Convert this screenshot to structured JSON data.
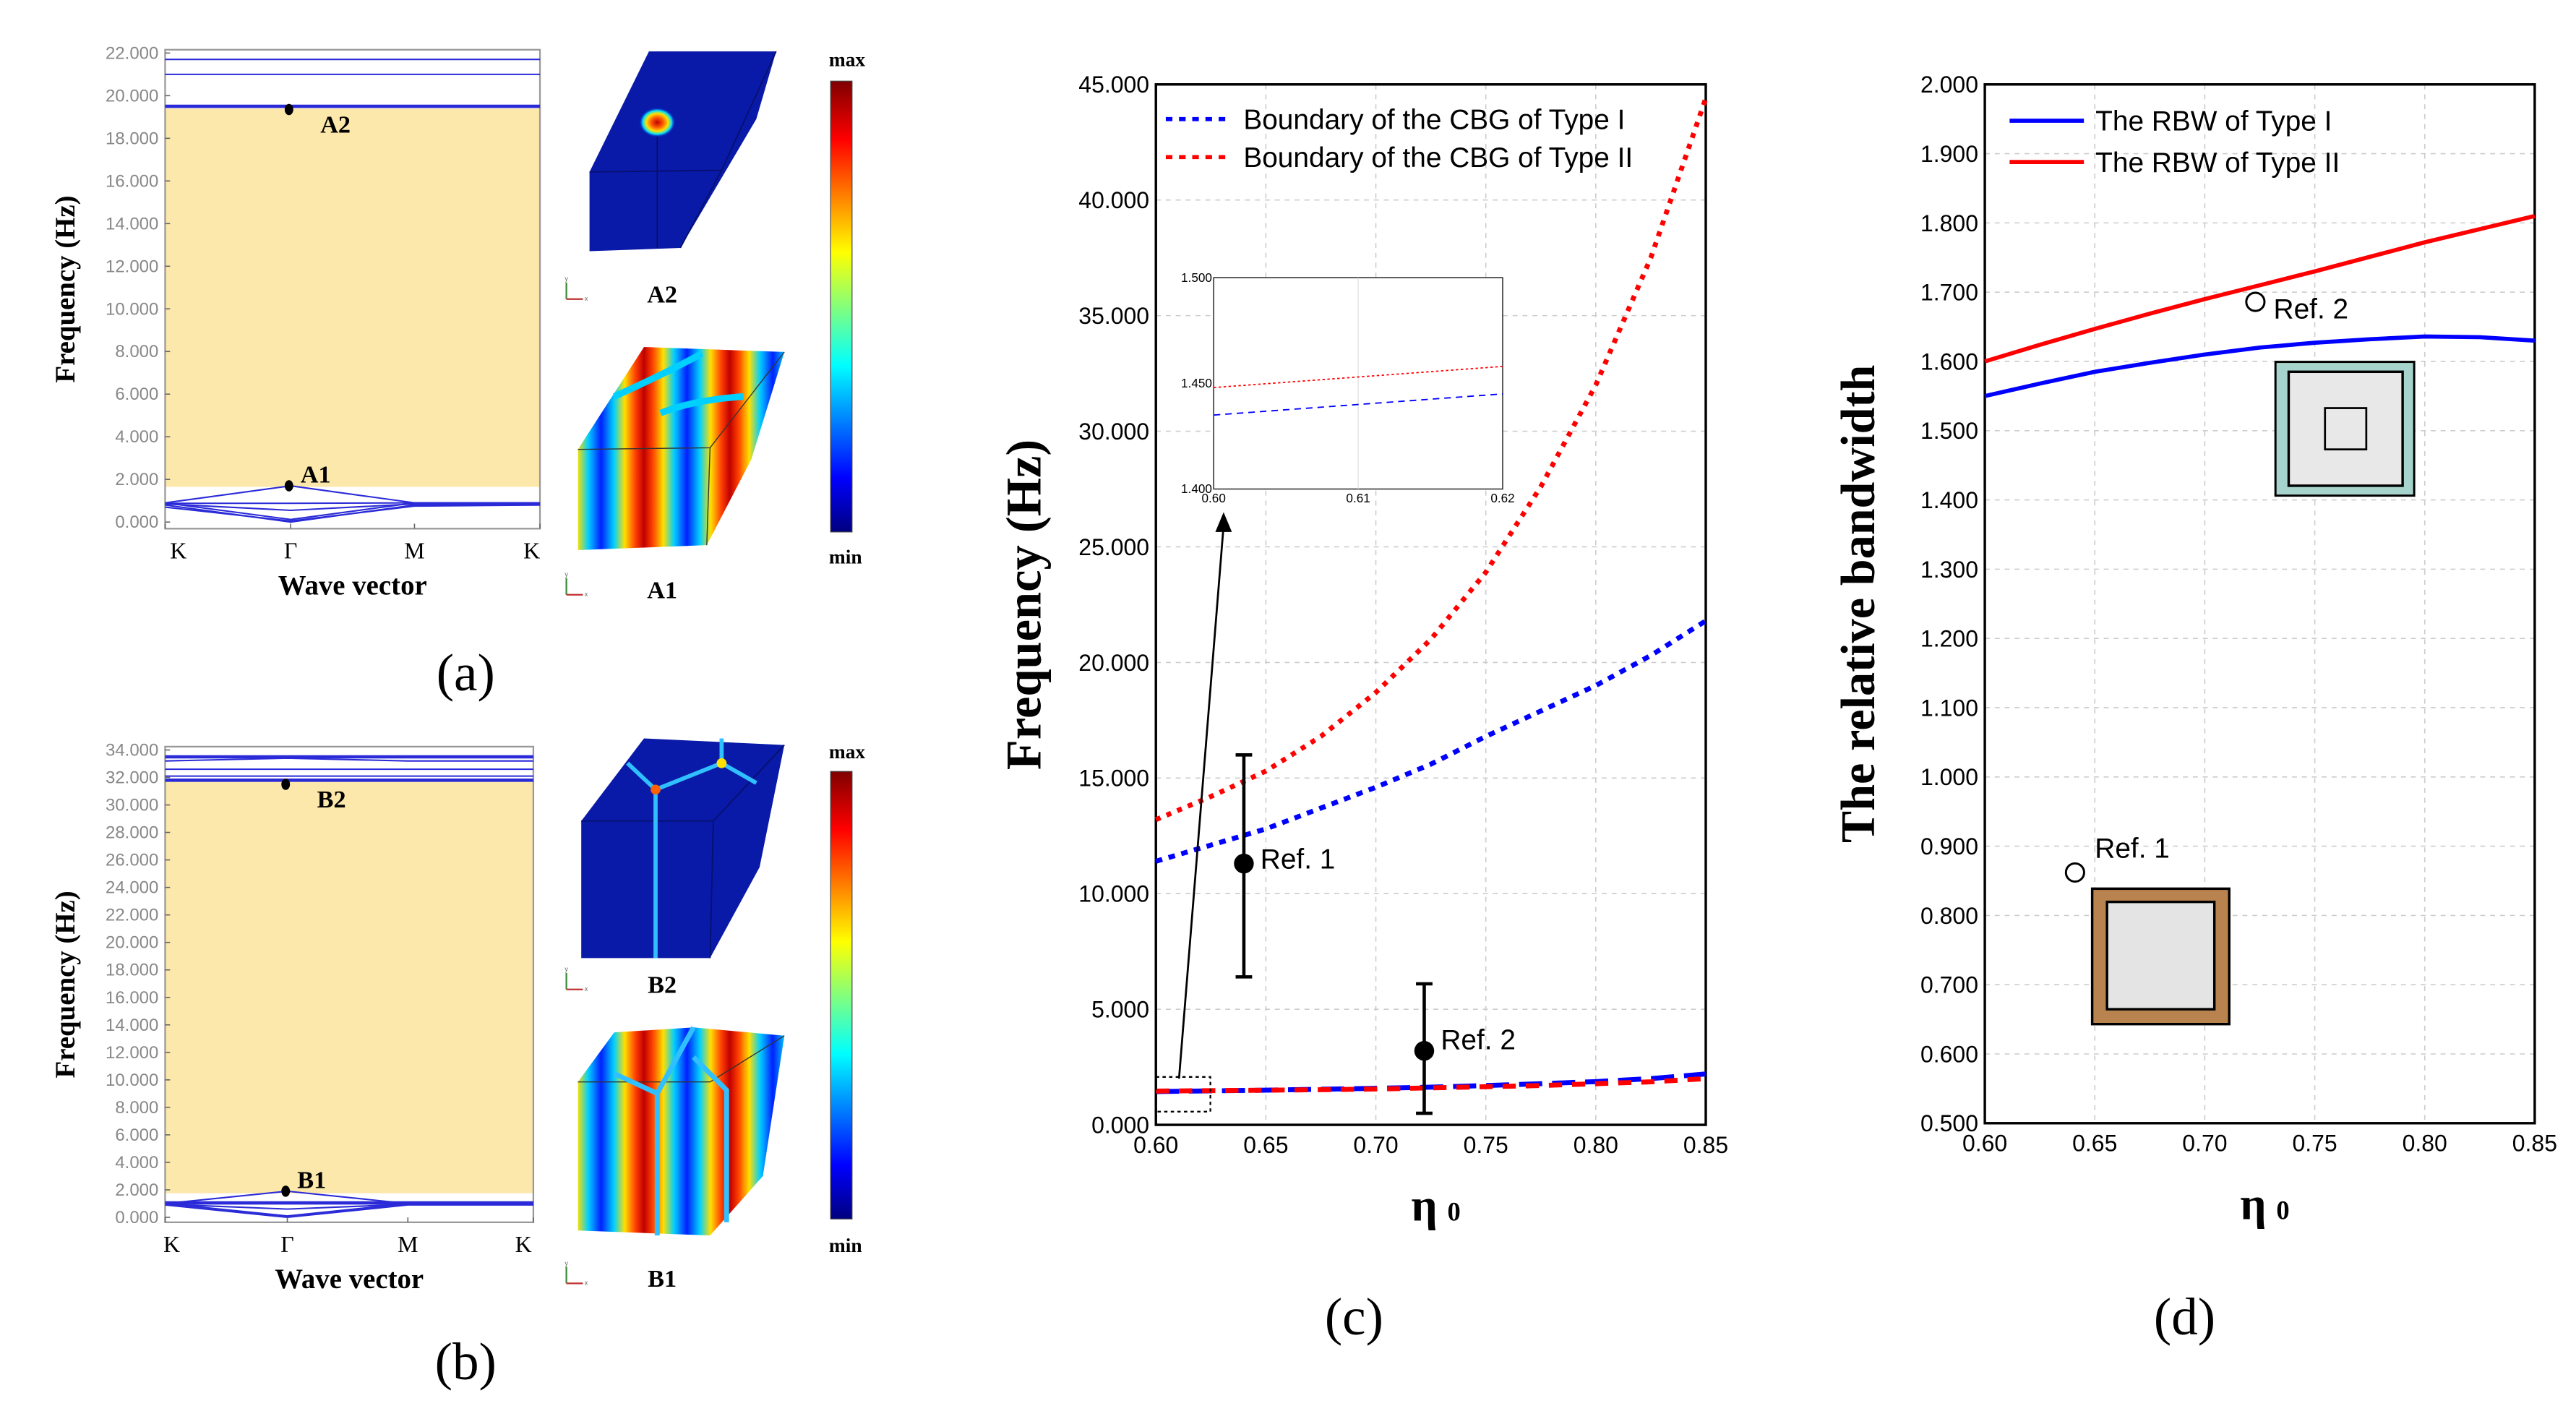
{
  "chart_data": [
    {
      "type": "line",
      "panel_label": "(a)",
      "xlabel": "Wave vector",
      "ylabel": "Frequency (Hz)",
      "x": [
        0,
        1,
        2,
        3
      ],
      "xtick_labels": [
        "K",
        "Γ",
        "M",
        "K"
      ],
      "ylim": [
        0,
        22
      ],
      "yticks": [
        0,
        2,
        4,
        6,
        8,
        10,
        12,
        14,
        16,
        18,
        20,
        22
      ],
      "ytick_labels": [
        "0.000",
        "2.000",
        "4.000",
        "6.000",
        "8.000",
        "10.000",
        "12.000",
        "14.000",
        "16.000",
        "18.000",
        "20.000",
        "22.000"
      ],
      "bandgap": [
        1.65,
        19.4
      ],
      "bands": [
        [
          21.7,
          21.7,
          21.7,
          21.7
        ],
        [
          21.0,
          21.0,
          21.0,
          21.0
        ],
        [
          19.5,
          19.5,
          19.5,
          19.5
        ],
        [
          0.9,
          1.7,
          0.9,
          0.9
        ],
        [
          0.85,
          0.55,
          0.85,
          0.85
        ],
        [
          0.9,
          0.12,
          0.9,
          0.85
        ],
        [
          0.8,
          0.0,
          0.8,
          0.8
        ],
        [
          0.7,
          0.05,
          0.75,
          0.8
        ],
        [
          0.88,
          0.88,
          0.9,
          0.9
        ]
      ],
      "points": [
        {
          "label": "A2",
          "x": 1,
          "y": 19.35
        },
        {
          "label": "A1",
          "x": 1,
          "y": 1.7
        }
      ],
      "mode_labels": [
        "A2",
        "A1"
      ],
      "colorbar": {
        "max": "max",
        "min": "min"
      },
      "triad": {
        "x": "x",
        "y": "y"
      }
    },
    {
      "type": "line",
      "panel_label": "(b)",
      "xlabel": "Wave vector",
      "ylabel": "Frequency (Hz)",
      "x": [
        0,
        1,
        2,
        3
      ],
      "xtick_labels": [
        "K",
        "Γ",
        "M",
        "K"
      ],
      "ylim": [
        0,
        34
      ],
      "yticks": [
        0,
        2,
        4,
        6,
        8,
        10,
        12,
        14,
        16,
        18,
        20,
        22,
        24,
        26,
        28,
        30,
        32,
        34
      ],
      "ytick_labels": [
        "0.000",
        "2.000",
        "4.000",
        "6.000",
        "8.000",
        "10.000",
        "12.000",
        "14.000",
        "16.000",
        "18.000",
        "20.000",
        "22.000",
        "24.000",
        "26.000",
        "28.000",
        "30.000",
        "32.000",
        "34.000"
      ],
      "bandgap": [
        1.75,
        31.7
      ],
      "bands": [
        [
          33.5,
          33.5,
          33.5,
          33.5
        ],
        [
          33.2,
          33.4,
          33.2,
          33.2
        ],
        [
          32.6,
          32.6,
          32.6,
          32.6
        ],
        [
          32.1,
          32.1,
          32.1,
          32.1
        ],
        [
          31.8,
          31.8,
          31.8,
          31.8
        ],
        [
          1.0,
          1.9,
          1.0,
          1.0
        ],
        [
          0.95,
          0.6,
          0.95,
          0.95
        ],
        [
          1.0,
          0.1,
          1.0,
          1.0
        ],
        [
          0.9,
          0.0,
          0.9,
          0.9
        ],
        [
          1.05,
          1.05,
          1.05,
          1.05
        ]
      ],
      "points": [
        {
          "label": "B2",
          "x": 1,
          "y": 31.5
        },
        {
          "label": "B1",
          "x": 1,
          "y": 1.9
        }
      ],
      "mode_labels": [
        "B2",
        "B1"
      ],
      "colorbar": {
        "max": "max",
        "min": "min"
      },
      "triad": {
        "x": "x",
        "y": "y"
      }
    },
    {
      "type": "line",
      "panel_label": "(c)",
      "xlabel": "η",
      "xlabel_sub": "0",
      "ylabel": "Frequency (Hz)",
      "xlim": [
        0.6,
        0.85
      ],
      "ylim": [
        0,
        45
      ],
      "grid": true,
      "legend_position": "top-left",
      "xticks": [
        0.6,
        0.65,
        0.7,
        0.75,
        0.8,
        0.85
      ],
      "xtick_labels": [
        "0.60",
        "0.65",
        "0.70",
        "0.75",
        "0.80",
        "0.85"
      ],
      "yticks": [
        0,
        5,
        10,
        15,
        20,
        25,
        30,
        35,
        40,
        45
      ],
      "ytick_labels": [
        "0.000",
        "5.000",
        "10.000",
        "15.000",
        "20.000",
        "25.000",
        "30.000",
        "35.000",
        "40.000",
        "45.000"
      ],
      "x": [
        0.6,
        0.625,
        0.65,
        0.675,
        0.7,
        0.725,
        0.75,
        0.775,
        0.8,
        0.825,
        0.85
      ],
      "series": [
        {
          "name": "Boundary of the CBG of Type I",
          "color": "#0000ff",
          "upper": [
            11.4,
            12.1,
            12.8,
            13.7,
            14.6,
            15.6,
            16.8,
            17.9,
            19.0,
            20.3,
            21.8
          ],
          "lower": [
            1.44,
            1.47,
            1.5,
            1.54,
            1.58,
            1.63,
            1.7,
            1.78,
            1.87,
            2.0,
            2.2
          ]
        },
        {
          "name": "Boundary of the CBG of Type II",
          "color": "#ff0000",
          "upper": [
            13.2,
            14.2,
            15.3,
            16.8,
            18.7,
            21.0,
            23.9,
            27.6,
            32.0,
            37.5,
            44.4
          ],
          "lower": [
            1.46,
            1.48,
            1.5,
            1.52,
            1.55,
            1.6,
            1.65,
            1.7,
            1.78,
            1.86,
            2.0
          ]
        }
      ],
      "references": [
        {
          "label": "Ref. 1",
          "x": 0.64,
          "y": 11.3,
          "err_low": 6.4,
          "err_high": 16.0
        },
        {
          "label": "Ref. 2",
          "x": 0.722,
          "y": 3.2,
          "err_low": 0.5,
          "err_high": 6.1
        }
      ],
      "inset": {
        "xlim": [
          0.6,
          0.62
        ],
        "ylim": [
          1.4,
          1.5
        ],
        "xticks": [
          0.6,
          0.61,
          0.62
        ],
        "xtick_labels": [
          "0.60",
          "0.61",
          "0.62"
        ],
        "yticks": [
          1.4,
          1.45,
          1.5
        ],
        "ytick_labels": [
          "1.400",
          "1.450",
          "1.500"
        ],
        "x": [
          0.6,
          0.62
        ],
        "type1": [
          1.435,
          1.445
        ],
        "type2": [
          1.448,
          1.458
        ]
      }
    },
    {
      "type": "line",
      "panel_label": "(d)",
      "xlabel": "η",
      "xlabel_sub": "0",
      "ylabel": "The relative bandwidth",
      "xlim": [
        0.6,
        0.85
      ],
      "ylim": [
        0.5,
        2.0
      ],
      "grid": true,
      "legend_position": "top-left",
      "xticks": [
        0.6,
        0.65,
        0.7,
        0.75,
        0.8,
        0.85
      ],
      "xtick_labels": [
        "0.60",
        "0.65",
        "0.70",
        "0.75",
        "0.80",
        "0.85"
      ],
      "yticks": [
        0.5,
        0.6,
        0.7,
        0.8,
        0.9,
        1.0,
        1.1,
        1.2,
        1.3,
        1.4,
        1.5,
        1.6,
        1.7,
        1.8,
        1.9,
        2.0
      ],
      "ytick_labels": [
        "0.500",
        "0.600",
        "0.700",
        "0.800",
        "0.900",
        "1.000",
        "1.100",
        "1.200",
        "1.300",
        "1.400",
        "1.500",
        "1.600",
        "1.700",
        "1.800",
        "1.900",
        "2.000"
      ],
      "x": [
        0.6,
        0.625,
        0.65,
        0.675,
        0.7,
        0.725,
        0.75,
        0.775,
        0.8,
        0.825,
        0.85
      ],
      "series": [
        {
          "name": "The RBW of Type I",
          "color": "#0000ff",
          "values": [
            1.55,
            1.568,
            1.585,
            1.598,
            1.61,
            1.62,
            1.627,
            1.632,
            1.636,
            1.635,
            1.63
          ]
        },
        {
          "name": "The RBW of Type II",
          "color": "#ff0000",
          "values": [
            1.6,
            1.624,
            1.647,
            1.669,
            1.69,
            1.71,
            1.73,
            1.751,
            1.772,
            1.791,
            1.81
          ]
        }
      ],
      "references": [
        {
          "label": "Ref. 1",
          "x": 0.641,
          "y": 0.862
        },
        {
          "label": "Ref. 2",
          "x": 0.723,
          "y": 1.686
        }
      ]
    }
  ]
}
